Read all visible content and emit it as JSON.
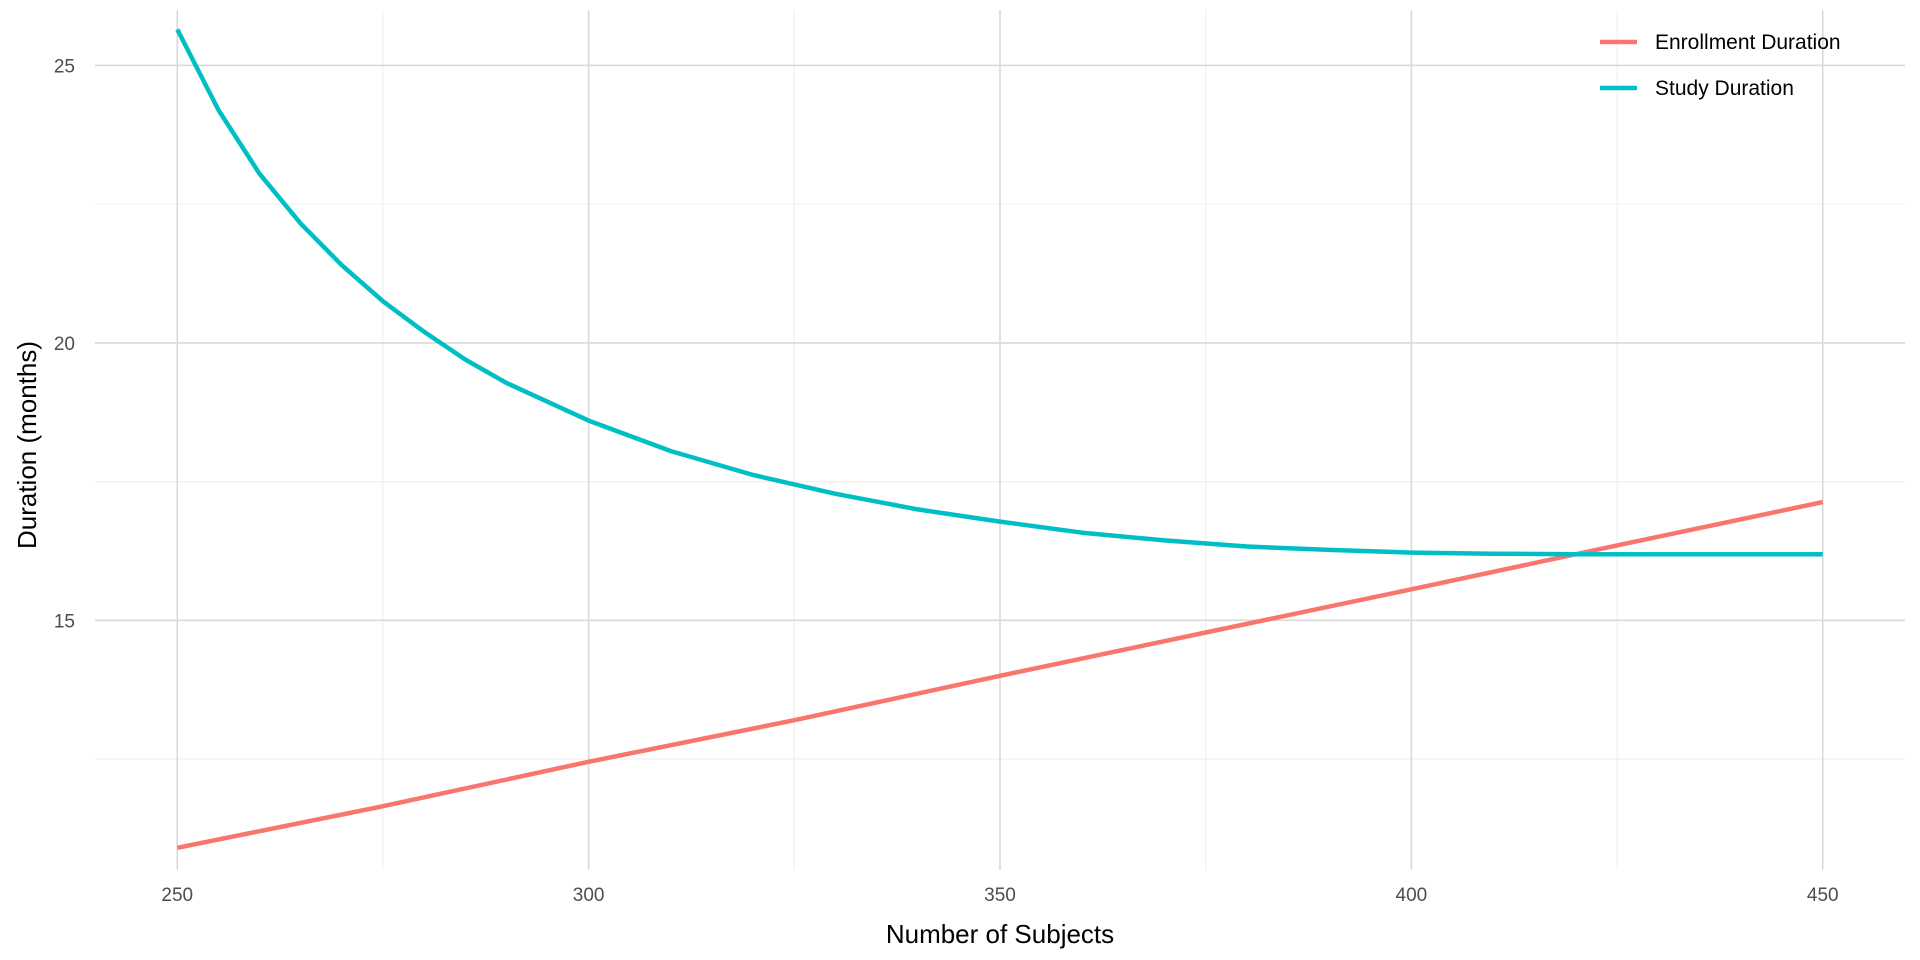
{
  "chart_data": {
    "type": "line",
    "title": "",
    "xlabel": "Number of Subjects",
    "ylabel": "Duration (months)",
    "xlim": [
      240,
      460
    ],
    "ylim": [
      10.5,
      26.0
    ],
    "x_ticks": [
      250,
      300,
      350,
      400,
      450
    ],
    "y_ticks": [
      15,
      20,
      25
    ],
    "grid": true,
    "legend_position": "top-right",
    "series": [
      {
        "name": "Enrollment Duration",
        "color": "#F8766D",
        "x": [
          250,
          275,
          300,
          325,
          350,
          375,
          400,
          425,
          450
        ],
        "y": [
          10.9,
          11.65,
          12.45,
          13.2,
          14.0,
          14.78,
          15.56,
          16.35,
          17.13
        ]
      },
      {
        "name": "Study Duration",
        "color": "#00BFC4",
        "x": [
          250,
          255,
          260,
          265,
          270,
          275,
          280,
          285,
          290,
          300,
          310,
          320,
          330,
          340,
          350,
          360,
          370,
          380,
          390,
          400,
          410,
          420,
          430,
          440,
          450
        ],
        "y": [
          25.65,
          24.2,
          23.05,
          22.15,
          21.4,
          20.75,
          20.2,
          19.7,
          19.28,
          18.6,
          18.05,
          17.62,
          17.28,
          17.0,
          16.78,
          16.58,
          16.44,
          16.33,
          16.27,
          16.22,
          16.2,
          16.19,
          16.19,
          16.19,
          16.19
        ]
      }
    ]
  }
}
